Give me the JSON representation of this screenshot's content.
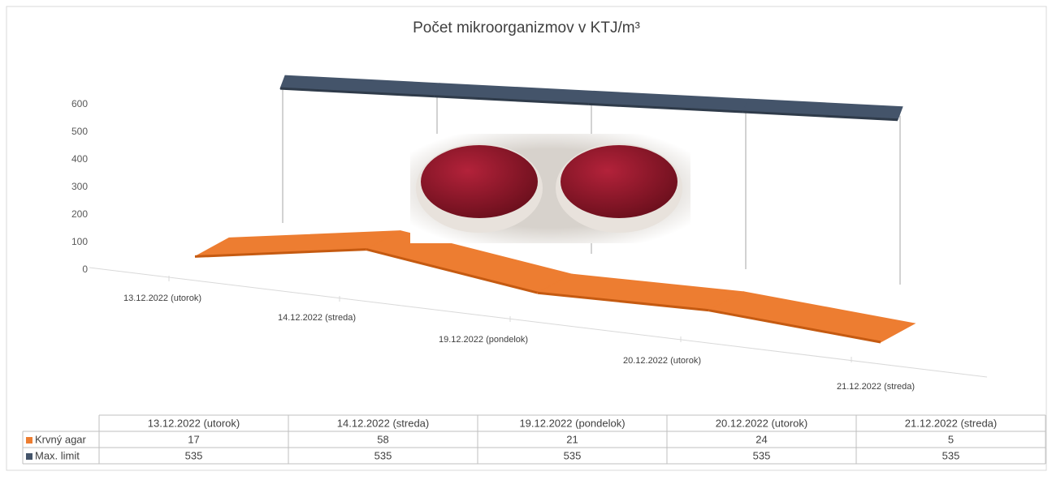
{
  "chart_data": {
    "type": "line3d",
    "title": "Počet mikroorganizmov v KTJ/m³",
    "categories": [
      "13.12.2022 (utorok)",
      "14.12.2022 (streda)",
      "19.12.2022 (pondelok)",
      "20.12.2022 (utorok)",
      "21.12.2022 (streda)"
    ],
    "series": [
      {
        "name": "Krvný agar",
        "color": "#ED7D31",
        "values": [
          17,
          58,
          21,
          24,
          5
        ]
      },
      {
        "name": "Max. limit",
        "color": "#44546A",
        "values": [
          535,
          535,
          535,
          535,
          535
        ]
      }
    ],
    "ylim": [
      0,
      600
    ],
    "yticks": [
      0,
      100,
      200,
      300,
      400,
      500,
      600
    ]
  }
}
